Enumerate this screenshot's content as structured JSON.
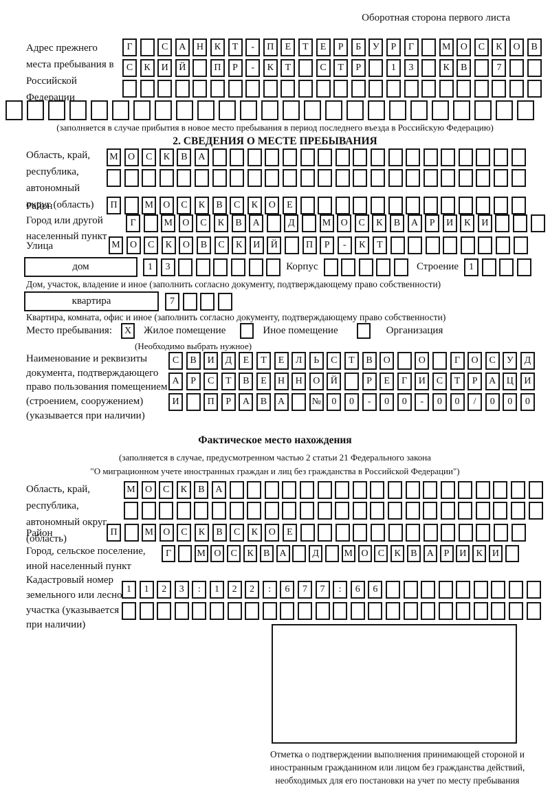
{
  "page": {
    "header_note": "Оборотная сторона первого листа"
  },
  "prev_address": {
    "label": "Адрес прежнего места пребывания в Российской Федерации",
    "row1": {
      "text": "Г САНКТ-ПЕТЕРБУРГ МОСКОВ",
      "len": 24
    },
    "row2": {
      "text": "СКИЙ ПР-КТ СТР 13 КВ 7",
      "len": 24
    },
    "row3": {
      "text": "",
      "len": 24
    },
    "row4": {
      "text": "",
      "len": 25
    },
    "note": "(заполняется в случае прибытия в новое место пребывания в период последнего въезда в Российскую Федерацию)"
  },
  "section2": {
    "title": "2. СВЕДЕНИЯ О МЕСТЕ ПРЕБЫВАНИЯ",
    "region": {
      "label": "Область, край, республика, автономный округ (область)",
      "row1": {
        "text": "МОСКВА",
        "len": 24
      },
      "row2": {
        "text": "",
        "len": 24
      }
    },
    "district": {
      "label": "Район",
      "row": {
        "text": "П МОСКВСКОЕ",
        "len": 24
      }
    },
    "city": {
      "label": "Город или другой населенный пункт",
      "row": {
        "text": "Г МОСКВА Д МОСКВАРИКИ",
        "len": 24
      }
    },
    "street": {
      "label": "Улица",
      "row": {
        "text": "МОСКОВСКИЙ ПР-КТ",
        "len": 24
      }
    },
    "house": {
      "box_label": "дом",
      "cells": {
        "text": "13",
        "len": 8
      },
      "korpus_label": "Корпус",
      "korpus_cells": {
        "text": "",
        "len": 5
      },
      "stroenie_label": "Строение",
      "stroenie_cells": {
        "text": "1",
        "len": 4
      }
    },
    "house_note": "Дом, участок, владение и иное (заполнить согласно документу, подтверждающему право собственности)",
    "apartment": {
      "box_label": "квартира",
      "cells": {
        "text": "7",
        "len": 4
      }
    },
    "apartment_note": "Квартира, комната, офис и иное (заполнить согласно документу, подтверждающему право собственности)",
    "place_type": {
      "label": "Место пребывания:",
      "options": [
        {
          "label": "Жилое помещение",
          "mark": "X"
        },
        {
          "label": "Иное помещение",
          "mark": ""
        },
        {
          "label": "Организация",
          "mark": ""
        }
      ],
      "note": "(Необходимо выбрать нужное)"
    },
    "document": {
      "label": "Наименование и реквизиты документа, подтверждающего право пользования помещением (строением, сооружением) (указывается при наличии)",
      "row1": {
        "text": "СВИДЕТЕЛЬСТВО О ГОСУД",
        "len": 21
      },
      "row2": {
        "text": "АРСТВЕННОЙ РЕГИСТРАЦИ",
        "len": 21
      },
      "row3": {
        "text": "И ПРАВА №00-00-00/000",
        "len": 21
      }
    }
  },
  "section3": {
    "title": "Фактическое место нахождения",
    "note_line1": "(заполняется в случае, предусмотренном частью 2 статьи 21 Федерального закона",
    "note_line2": "\"О миграционном учете иностранных граждан и лиц без гражданства в Российской Федерации\")",
    "region": {
      "label": "Область, край, республика, автономный округ (область)",
      "row1": {
        "text": "МОСКВА",
        "len": 24
      },
      "row2": {
        "text": "",
        "len": 24
      }
    },
    "district": {
      "label": "Район",
      "row": {
        "text": "П МОСКВСКОЕ",
        "len": 24
      }
    },
    "city": {
      "label": "Город, сельское поселение, иной населенный пункт",
      "row": {
        "text": "Г МОСКВА Д МОСКВАРИКИ",
        "len": 22
      }
    },
    "cadastre": {
      "label": "Кадастровый номер земельного или лесного участка (указывается при наличии)",
      "row1": {
        "text": "1123:122:677:66",
        "len": 24
      },
      "row2": {
        "text": "",
        "len": 24
      }
    }
  },
  "footer": {
    "caption": "Отметка о подтверждении выполнения принимающей стороной и иностранным гражданином или лицом без гражданства действий, необходимых для его постановки на учет по месту пребывания"
  }
}
